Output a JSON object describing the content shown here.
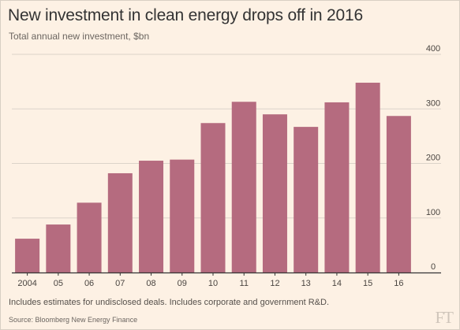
{
  "colors": {
    "background": "#fdf1e4",
    "bar": "#b56b7f",
    "grid": "#dcd3c9",
    "axis": "#333333",
    "text": "#333333",
    "muted": "#6b6560"
  },
  "chart_data": {
    "type": "bar",
    "title": "New investment in clean energy drops off in 2016",
    "subtitle": "Total annual new investment, $bn",
    "categories": [
      "2004",
      "05",
      "06",
      "07",
      "08",
      "09",
      "10",
      "11",
      "12",
      "13",
      "14",
      "15",
      "16"
    ],
    "values": [
      62,
      88,
      128,
      182,
      205,
      207,
      274,
      313,
      290,
      267,
      312,
      348,
      287
    ],
    "ylim": [
      0,
      400
    ],
    "yticks": [
      0,
      100,
      200,
      300,
      400
    ],
    "y_axis_side": "right",
    "grid": true,
    "xlabel": "",
    "ylabel": ""
  },
  "footnote": "Includes estimates for undisclosed deals. Includes corporate and government R&D.",
  "source": "Source: Bloomberg New Energy Finance",
  "logo_text": "FT"
}
